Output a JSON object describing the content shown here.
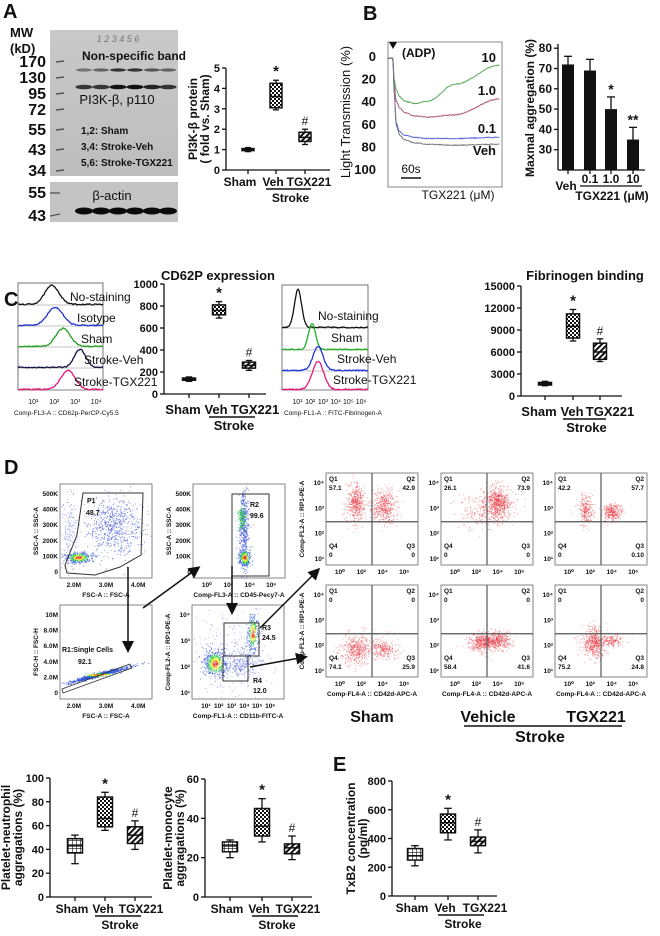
{
  "panel_labels": {
    "a": "A",
    "b": "B",
    "c": "C",
    "d": "D",
    "e": "E"
  },
  "blot": {
    "mw_label": "MW",
    "kd_label": "(kD)",
    "mw_markers": [
      "170",
      "130",
      "95",
      "72",
      "55",
      "43",
      "34"
    ],
    "actin_markers": [
      "55",
      "43"
    ],
    "lane_labels": "1 2 3 4 5 6",
    "nonspecific_label": "Non-specific band",
    "target_label": "PI3K-β, p110",
    "legend": [
      "1,2: Sham",
      "3,4: Stroke-Veh",
      "5,6: Stroke-TGX221"
    ],
    "actin_label": "β-actin"
  },
  "histograms": [
    {
      "traces": [
        "No-staining",
        "Isotype",
        "Sham",
        "Stroke-Veh",
        "Stroke-TGX221"
      ],
      "colors": [
        "#111111",
        "#2233cc",
        "#22a022",
        "#111144",
        "#e8187a"
      ],
      "xticks": [
        "10¹",
        "10²",
        "10³",
        "10⁴"
      ],
      "xlabel": "Comp-FL3-A :: CD62p-PerCP-Cy5.5"
    },
    {
      "traces": [
        "No-staining",
        "Sham",
        "Stroke-Veh",
        "Stroke-TGX221"
      ],
      "colors": [
        "#111111",
        "#22b022",
        "#2233dd",
        "#e8187a"
      ],
      "xticks": [
        "10¹",
        "10²",
        "10³",
        "10⁴",
        "10⁵",
        "10⁶"
      ],
      "xlabel": "Comp-FL1-A :: FITC-Fibrinogen-A"
    }
  ],
  "flow": {
    "plots": [
      {
        "ylabel": "SSC-A :: SSC-A",
        "xlabel": "FSC-A :: FSC-A",
        "yticks": [
          "500K",
          "400K",
          "300K",
          "200K",
          "100K",
          "0"
        ],
        "xticks": [
          "2.0M",
          "3.0M",
          "4.0M"
        ],
        "gates": [
          {
            "name": "P1",
            "value": "48.7"
          }
        ]
      },
      {
        "ylabel": "SSC-A :: SSC-A",
        "xlabel": "Comp-FL3-A :: CD45-Pecy7-A",
        "yticks": [
          "500K",
          "400K",
          "300K",
          "200K",
          "100K",
          "0"
        ],
        "xticks": [
          "10⁰",
          "10²",
          "10⁴",
          "10⁶"
        ],
        "gates": [
          {
            "name": "R2",
            "value": "99.6"
          }
        ]
      },
      {
        "ylabel": "FSC-H :: FSC-H",
        "xlabel": "FSC-A :: FSC-A",
        "yticks": [
          "10M",
          "8.0M",
          "6.0M",
          "4.0M",
          "2.0M",
          "0"
        ],
        "xticks": [
          "2.0M",
          "3.0M",
          "4.0M"
        ],
        "gates": [
          {
            "name": "R1:Single Cells",
            "value": "92.1"
          }
        ]
      },
      {
        "ylabel": "Comp-FL2-A :: RP1-PE-A",
        "xlabel": "Comp-FL1-A :: CD11b-FITC-A",
        "yticks": [
          "10⁴",
          "10³",
          "10²",
          "10¹"
        ],
        "xticks": [
          "10¹",
          "10²",
          "10³",
          "10⁴",
          "10⁵",
          "10⁶"
        ],
        "gates": [
          {
            "name": "R3",
            "value": "24.5"
          },
          {
            "name": "R4",
            "value": "12.0"
          }
        ]
      }
    ],
    "quadrant_ylabel": "Comp-FL2-A :: RP1-PE-A",
    "quadrant_xlabel": "Comp-FL4-A :: CD42d-APC-A",
    "quadrant_yticks": [
      "10⁴",
      "10³",
      "10²",
      "10¹"
    ],
    "quadrant_xticks": [
      "10⁰",
      "10²",
      "10⁴",
      "10⁶"
    ],
    "quadrant_names": [
      "Q1",
      "Q2",
      "Q3",
      "Q4"
    ],
    "quadrants": [
      {
        "group": "Sham",
        "gate": "R3",
        "q1": "57.1",
        "q2": "42.9",
        "q3": "0",
        "q4": "0"
      },
      {
        "group": "Vehicle",
        "gate": "R3",
        "q1": "26.1",
        "q2": "73.9",
        "q3": "0",
        "q4": "0"
      },
      {
        "group": "TGX221",
        "gate": "R3",
        "q1": "42.2",
        "q2": "57.7",
        "q3": "0.10",
        "q4": "0"
      },
      {
        "group": "Sham",
        "gate": "R4",
        "q1": "0",
        "q2": "0",
        "q3": "25.9",
        "q4": "74.1"
      },
      {
        "group": "Vehicle",
        "gate": "R4",
        "q1": "0",
        "q2": "0",
        "q3": "41.6",
        "q4": "58.4"
      },
      {
        "group": "TGX221",
        "gate": "R4",
        "q1": "0",
        "q2": "0",
        "q3": "24.8",
        "q4": "75.2"
      }
    ],
    "group_labels": {
      "sham": "Sham",
      "vehicle": "Vehicle",
      "tgx": "TGX221",
      "stroke": "Stroke"
    }
  },
  "chart_data": [
    {
      "name": "pi3k-protein",
      "type": "box",
      "categories": [
        "Sham",
        "Veh",
        "TGX221"
      ],
      "group_label": "Stroke",
      "ylabel_lines": [
        "PI3K-β protein",
        "( fold vs. Sham)"
      ],
      "title": "",
      "ylim": [
        0,
        5
      ],
      "yticks": [
        0,
        1,
        2,
        3,
        4,
        5
      ],
      "stats": [
        {
          "min": 0.9,
          "q1": 0.95,
          "median": 1.0,
          "q3": 1.05,
          "max": 1.1
        },
        {
          "min": 2.95,
          "q1": 3.05,
          "median": 3.6,
          "q3": 4.25,
          "max": 4.4
        },
        {
          "min": 1.25,
          "q1": 1.4,
          "median": 1.6,
          "q3": 1.85,
          "max": 2.0
        }
      ],
      "significance": [
        "",
        "*",
        "#"
      ]
    },
    {
      "name": "aggregation-traces",
      "type": "line",
      "ylabel": "Light Transmission (%)",
      "xlabel": "TGX221 (μM)",
      "annotation": "(ADP)",
      "scale_bar": "60s",
      "ylim": [
        0,
        100
      ],
      "yticks": [
        0,
        20,
        40,
        60,
        80,
        100
      ],
      "y_inverted": true,
      "x_seconds": [
        0,
        15,
        18,
        25,
        35,
        50,
        80,
        120,
        200,
        335
      ],
      "series": [
        {
          "name": "10",
          "color": "#5aaa5a",
          "values": [
            2,
            2,
            20,
            30,
            36,
            40,
            42,
            40,
            25,
            8
          ]
        },
        {
          "name": "1.0",
          "color": "#b05a78",
          "values": [
            2,
            2,
            25,
            40,
            46,
            50,
            53,
            54,
            52,
            38
          ]
        },
        {
          "name": "0.1",
          "color": "#5566dd",
          "values": [
            2,
            2,
            30,
            60,
            67,
            70,
            72,
            73,
            73,
            72
          ]
        },
        {
          "name": "Veh",
          "color": "#777777",
          "values": [
            2,
            2,
            30,
            62,
            70,
            74,
            77,
            78,
            79,
            78
          ]
        }
      ]
    },
    {
      "name": "maxmal-aggregation",
      "type": "bar",
      "categories": [
        "Veh",
        "0.1",
        "1.0",
        "10"
      ],
      "group_label": "TGX221 (μM)",
      "ylabel": "Maxmal aggregation (%)",
      "ylim": [
        20,
        80
      ],
      "yticks": [
        30,
        40,
        50,
        60,
        70,
        80
      ],
      "values": [
        72,
        69,
        50,
        35
      ],
      "errors": [
        4,
        5.5,
        6,
        6
      ],
      "significance": [
        "",
        "",
        "*",
        "**"
      ]
    },
    {
      "name": "cd62p-expression",
      "type": "box",
      "categories": [
        "Sham",
        "Veh",
        "TGX221"
      ],
      "group_label": "Stroke",
      "ylabel_lines": [],
      "title": "CD62P expression",
      "ylim": [
        0,
        1000
      ],
      "yticks": [
        0,
        200,
        400,
        600,
        800,
        1000
      ],
      "stats": [
        {
          "min": 115,
          "q1": 125,
          "median": 135,
          "q3": 145,
          "max": 155
        },
        {
          "min": 690,
          "q1": 720,
          "median": 760,
          "q3": 810,
          "max": 840
        },
        {
          "min": 215,
          "q1": 235,
          "median": 260,
          "q3": 290,
          "max": 305
        }
      ],
      "significance": [
        "",
        "*",
        "#"
      ]
    },
    {
      "name": "fibrinogen-binding",
      "type": "box",
      "categories": [
        "Sham",
        "Veh",
        "TGX221"
      ],
      "group_label": "Stroke",
      "ylabel_lines": [],
      "title": "Fibrinogen binding",
      "ylim": [
        0,
        15000
      ],
      "yticks": [
        0,
        3000,
        6000,
        9000,
        12000,
        15000
      ],
      "stats": [
        {
          "min": 1400,
          "q1": 1500,
          "median": 1700,
          "q3": 1850,
          "max": 2000
        },
        {
          "min": 7500,
          "q1": 7900,
          "median": 9500,
          "q3": 11200,
          "max": 11800
        },
        {
          "min": 4700,
          "q1": 5000,
          "median": 6000,
          "q3": 7200,
          "max": 7800
        }
      ],
      "significance": [
        "",
        "*",
        "#"
      ]
    },
    {
      "name": "platelet-neutrophil",
      "type": "box",
      "categories": [
        "Sham",
        "Veh",
        "TGX221"
      ],
      "group_label": "Stroke",
      "ylabel_lines": [
        "Platelet-neutrophil",
        "aggragations (%)"
      ],
      "title": "",
      "ylim": [
        0,
        100
      ],
      "yticks": [
        0,
        20,
        40,
        60,
        80,
        100
      ],
      "stats": [
        {
          "min": 28,
          "q1": 37,
          "median": 43,
          "q3": 49,
          "max": 52
        },
        {
          "min": 56,
          "q1": 59,
          "median": 66,
          "q3": 84,
          "max": 88
        },
        {
          "min": 40,
          "q1": 45,
          "median": 52,
          "q3": 59,
          "max": 64
        }
      ],
      "significance": [
        "",
        "*",
        "#"
      ]
    },
    {
      "name": "platelet-monocyte",
      "type": "box",
      "categories": [
        "Sham",
        "Veh",
        "TGX221"
      ],
      "group_label": "Stroke",
      "ylabel_lines": [
        "Platelet-monocyte",
        "aggragations (%)"
      ],
      "title": "",
      "ylim": [
        0,
        60
      ],
      "yticks": [
        0,
        20,
        40,
        60
      ],
      "stats": [
        {
          "min": 20,
          "q1": 23,
          "median": 26,
          "q3": 28,
          "max": 29
        },
        {
          "min": 28,
          "q1": 31,
          "median": 36,
          "q3": 45,
          "max": 50
        },
        {
          "min": 19,
          "q1": 22,
          "median": 25,
          "q3": 27,
          "max": 31
        }
      ],
      "significance": [
        "",
        "*",
        "#"
      ]
    },
    {
      "name": "txb2-concentration",
      "type": "box",
      "categories": [
        "Sham",
        "Veh",
        "TGX221"
      ],
      "group_label": "Stroke",
      "ylabel_lines": [
        "TxB2 concentration",
        "(pg/ml)"
      ],
      "title": "",
      "ylim": [
        0,
        800
      ],
      "yticks": [
        0,
        200,
        400,
        600,
        800
      ],
      "stats": [
        {
          "min": 210,
          "q1": 250,
          "median": 280,
          "q3": 330,
          "max": 350
        },
        {
          "min": 390,
          "q1": 440,
          "median": 510,
          "q3": 570,
          "max": 610
        },
        {
          "min": 300,
          "q1": 350,
          "median": 380,
          "q3": 410,
          "max": 460
        }
      ],
      "significance": [
        "",
        "*",
        "#"
      ]
    }
  ]
}
